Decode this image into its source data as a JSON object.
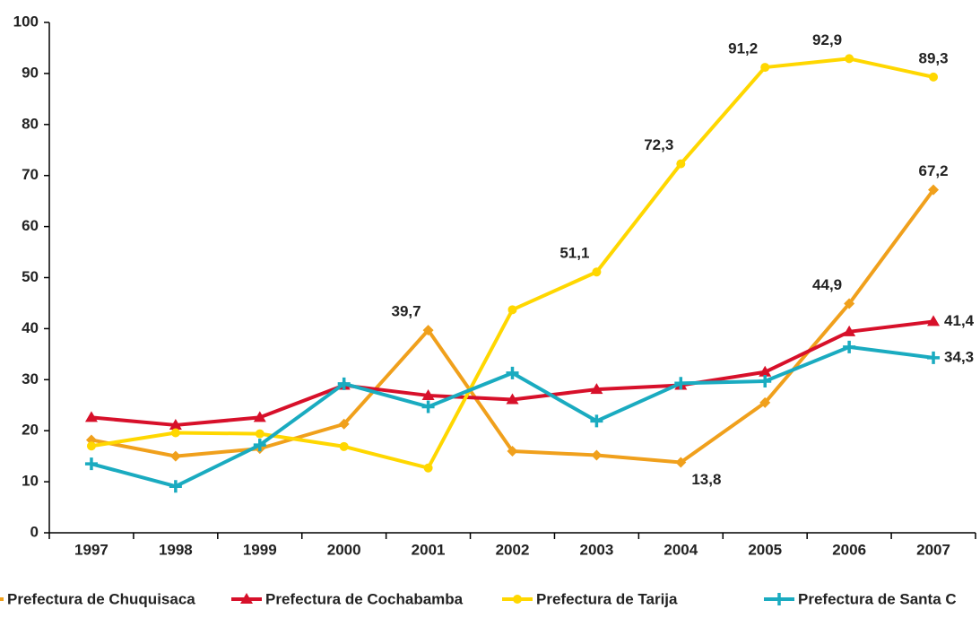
{
  "chart_data": {
    "type": "line",
    "categories": [
      "1997",
      "1998",
      "1999",
      "2000",
      "2001",
      "2002",
      "2003",
      "2004",
      "2005",
      "2006",
      "2007"
    ],
    "ylim": [
      0,
      100
    ],
    "yticks": [
      0,
      10,
      20,
      30,
      40,
      50,
      60,
      70,
      80,
      90,
      100
    ],
    "grid": false,
    "legend": "bottom",
    "series": [
      {
        "name": "Prefectura de Chuquisaca",
        "color": "#f0a01c",
        "marker": "diamond",
        "values": [
          18.2,
          15,
          16.5,
          21.3,
          39.7,
          16,
          15.2,
          13.8,
          25.5,
          44.9,
          67.2
        ],
        "value_labels": [
          null,
          null,
          null,
          null,
          "39,7",
          null,
          null,
          "13,8",
          null,
          "44,9",
          "67,2"
        ]
      },
      {
        "name": "Prefectura de Cochabamba",
        "color": "#d7102a",
        "marker": "triangle",
        "values": [
          22.6,
          21.1,
          22.6,
          28.9,
          26.9,
          26.1,
          28.1,
          28.9,
          31.5,
          39.4,
          41.4
        ],
        "value_labels": [
          null,
          null,
          null,
          null,
          null,
          null,
          null,
          null,
          null,
          null,
          "41,4"
        ]
      },
      {
        "name": "Prefectura de Tarija",
        "color": "#ffd700",
        "marker": "circle",
        "values": [
          17,
          19.6,
          19.4,
          16.9,
          12.7,
          43.7,
          51.1,
          72.3,
          91.2,
          92.9,
          89.3
        ],
        "value_labels": [
          null,
          null,
          null,
          null,
          null,
          null,
          "51,1",
          "72,3",
          "91,2",
          "92,9",
          "89,3"
        ]
      },
      {
        "name": "Prefectura de Santa C",
        "color": "#1aabc0",
        "marker": "plus",
        "values": [
          13.5,
          9.1,
          17.2,
          29.2,
          24.7,
          31.3,
          21.9,
          29.3,
          29.7,
          36.4,
          34.3
        ],
        "value_labels": [
          null,
          null,
          null,
          null,
          null,
          null,
          null,
          null,
          null,
          null,
          "34,3"
        ]
      }
    ]
  }
}
